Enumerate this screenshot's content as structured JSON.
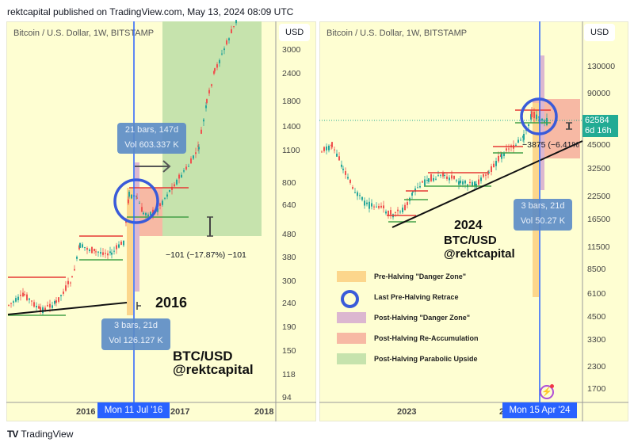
{
  "header": {
    "published": "rektcapital published on TradingView.com, May 13, 2024 08:09 UTC"
  },
  "left": {
    "symbol": "Bitcoin / U.S. Dollar, 1W, BITSTAMP",
    "currency": "USD",
    "yticks": [
      "3000",
      "2400",
      "1800",
      "1400",
      "1100",
      "800",
      "640",
      "480",
      "380",
      "300",
      "240",
      "190",
      "150",
      "118",
      "94"
    ],
    "xticks": [
      "2016",
      "2017",
      "2018"
    ],
    "crosshair_date": "Mon 11 Jul '16",
    "tooltip_top": {
      "line1": "21 bars, 147d",
      "line2": "Vol 603.337 K"
    },
    "tooltip_bottom": {
      "line1": "3 bars, 21d",
      "line2": "Vol 126.127 K"
    },
    "measure": "−101 (−17.87%) −101",
    "year": "2016",
    "pair": "BTC/USD",
    "handle": "@rektcapital"
  },
  "right": {
    "symbol": "Bitcoin / U.S. Dollar, 1W, BITSTAMP",
    "currency": "USD",
    "yticks": [
      "130000",
      "90000",
      "45000",
      "32500",
      "22500",
      "16500",
      "11500",
      "8500",
      "6100",
      "4500",
      "3300",
      "2300",
      "1700"
    ],
    "xticks": [
      "2023",
      "2"
    ],
    "crosshair_date": "Mon 15 Apr '24",
    "price": "62584",
    "countdown": "6d 16h",
    "tooltip": {
      "line1": "3 bars, 21d",
      "line2": "Vol 50.27 K"
    },
    "measure": "−3875 (−6.41%",
    "year": "2024",
    "pair": "BTC/USD",
    "handle": "@rektcapital",
    "legend": [
      {
        "label": "Pre-Halving \"Danger Zone\"",
        "color": "#fcd68c",
        "kind": "box"
      },
      {
        "label": "Last Pre-Halving Retrace",
        "color": "#3a5bd9",
        "kind": "circle"
      },
      {
        "label": "Post-Halving \"Danger Zone\"",
        "color": "#dcb7d0",
        "kind": "box"
      },
      {
        "label": "Post-Halving Re-Accumulation",
        "color": "#f7b9a4",
        "kind": "box"
      },
      {
        "label": "Post-Halving Parabolic Upside",
        "color": "#c6e3ad",
        "kind": "box"
      }
    ]
  },
  "footer": {
    "brand": "TradingView"
  },
  "colors": {
    "up": "#26a69a",
    "down": "#ef5350",
    "crosshair": "#2962ff",
    "price_label": "#22ab94"
  }
}
